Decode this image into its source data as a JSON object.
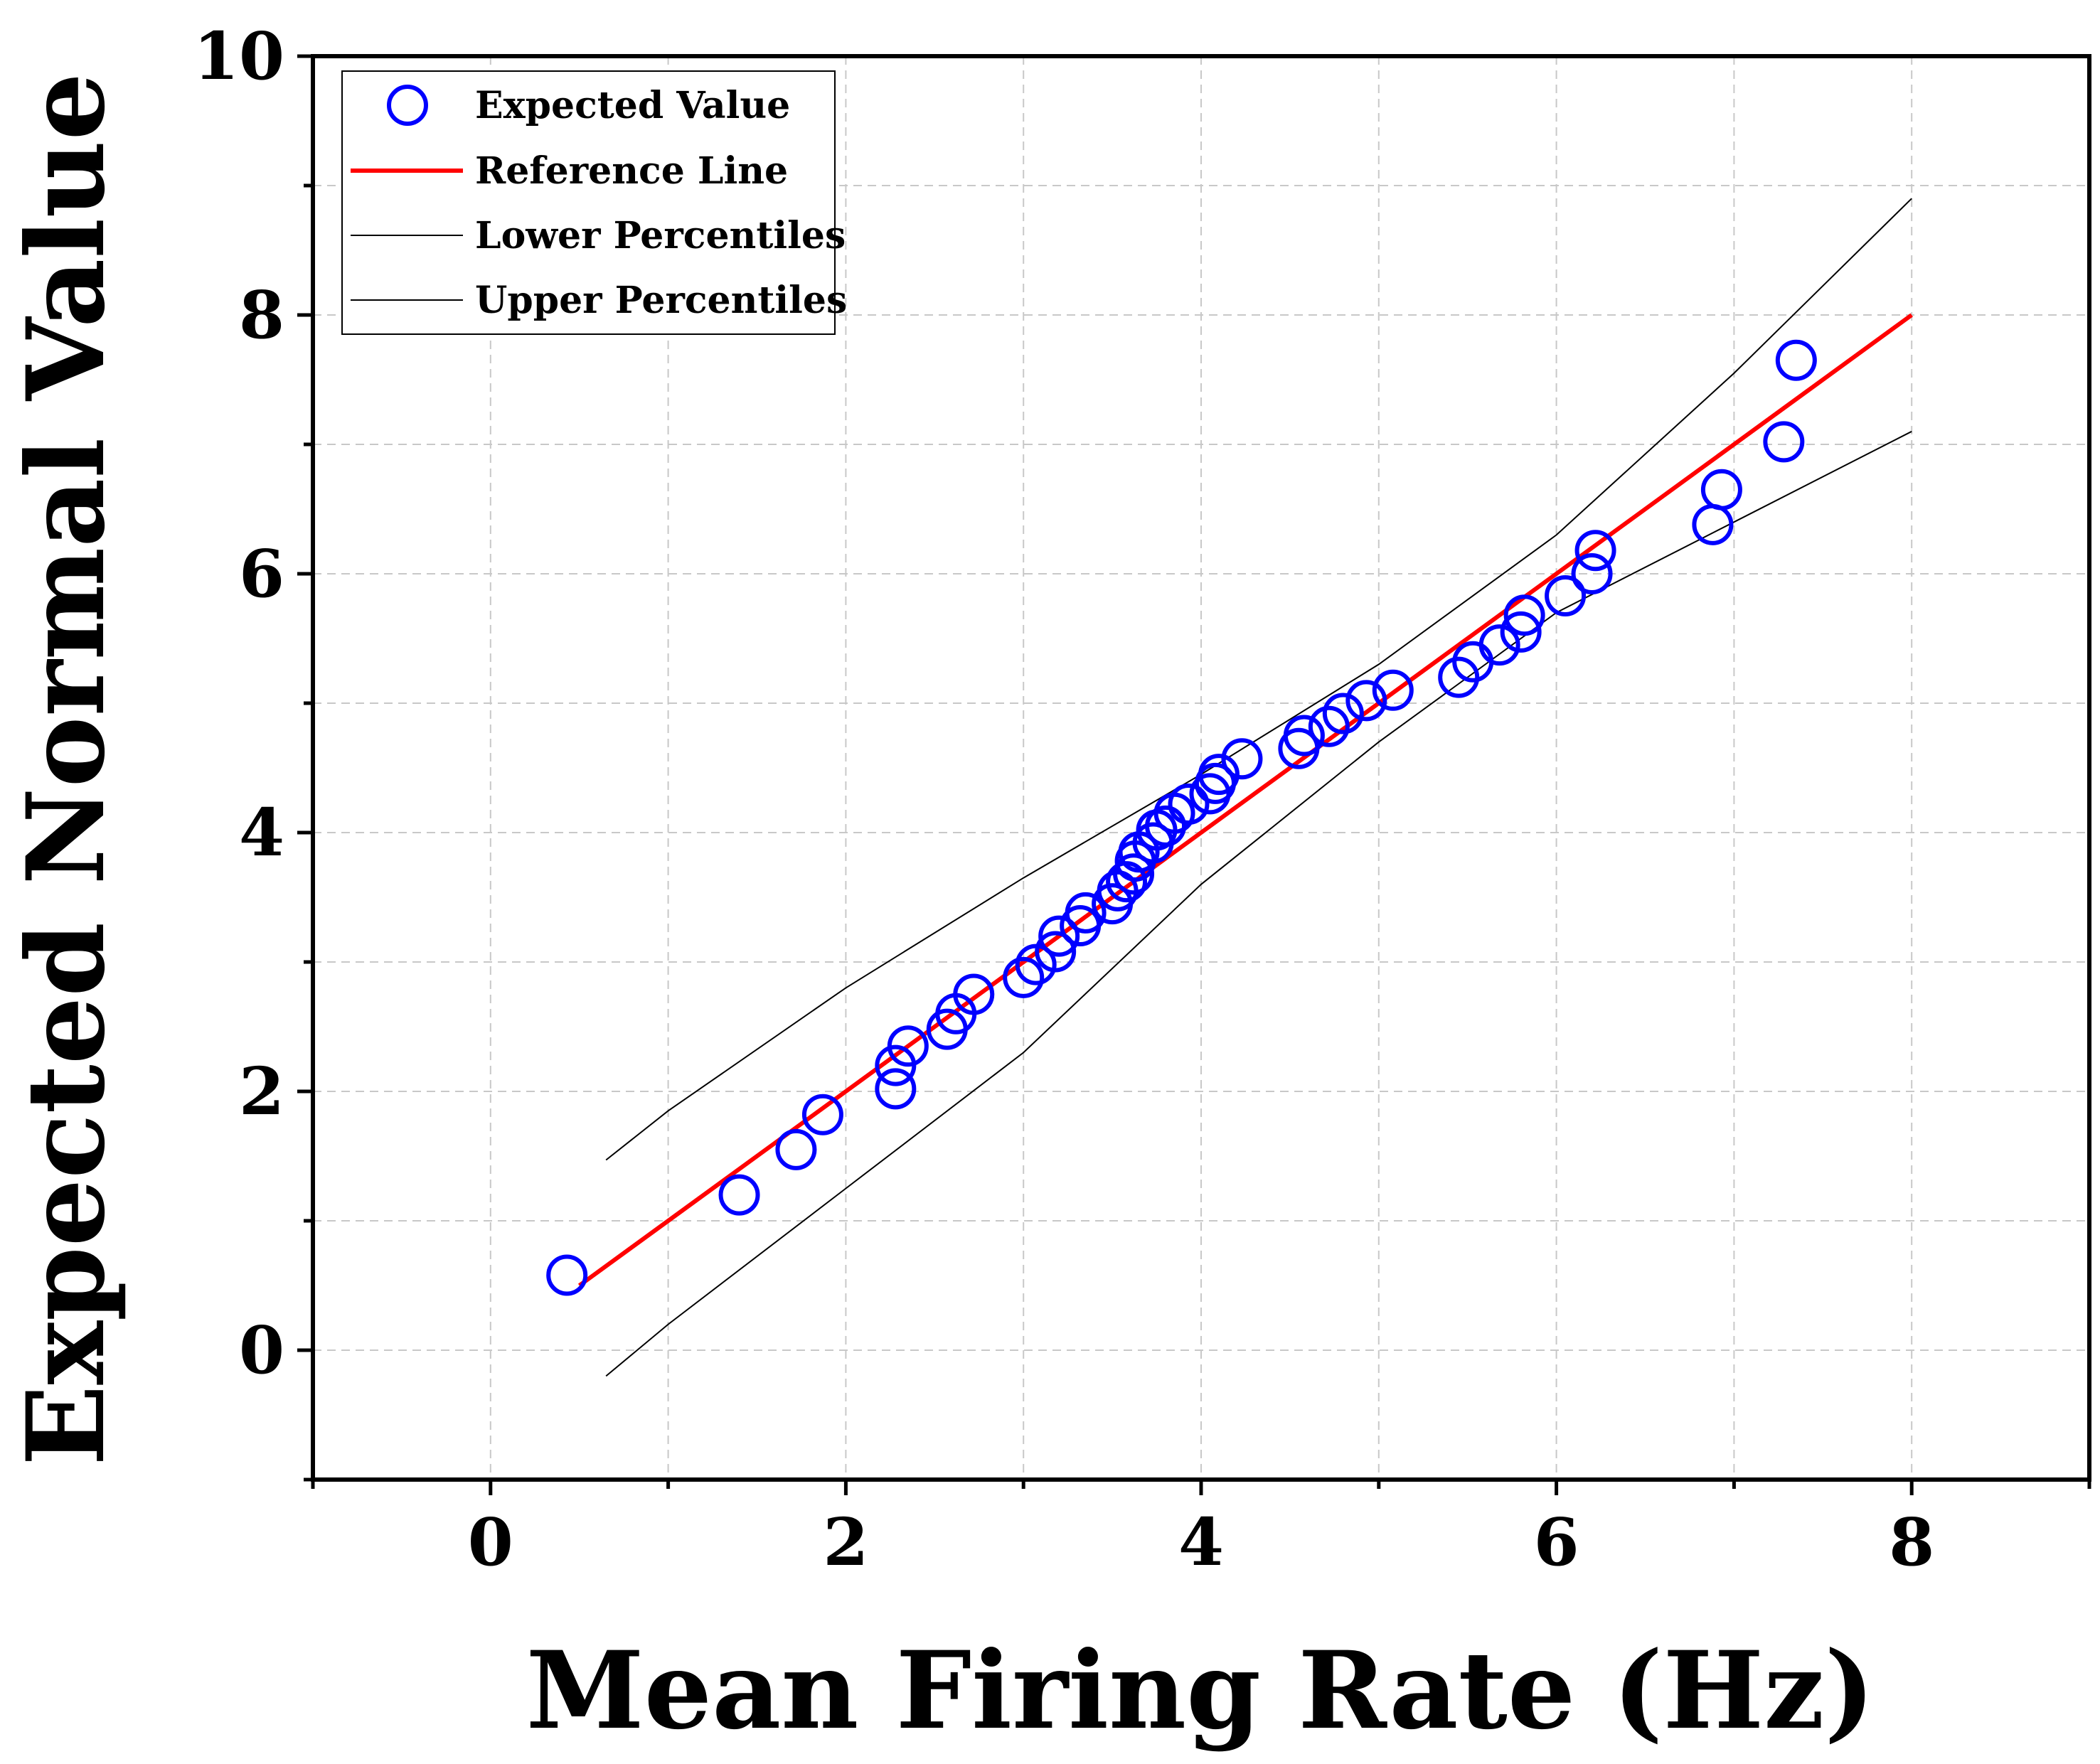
{
  "chart_data": {
    "type": "scatter",
    "title": "",
    "xlabel": "Mean Firing Rate (Hz)",
    "ylabel": "Expected Normal Value",
    "xlim": [
      -1,
      9
    ],
    "ylim": [
      -1,
      10
    ],
    "xticks": [
      0,
      2,
      4,
      6,
      8
    ],
    "xtick_labels": [
      "0",
      "2",
      "4",
      "6",
      "8"
    ],
    "yticks": [
      0,
      2,
      4,
      6,
      8,
      10
    ],
    "ytick_labels": [
      "0",
      "2",
      "4",
      "6",
      "8",
      "10"
    ],
    "grid": true,
    "legend_position": "top-left",
    "legend": [
      {
        "label": "Expected Value",
        "marker": "circle-open",
        "color": "#0000ff"
      },
      {
        "label": "Reference Line",
        "marker": "line",
        "color": "#ff0000"
      },
      {
        "label": "Lower Percentiles",
        "marker": "line",
        "color": "#000000"
      },
      {
        "label": "Upper Percentiles",
        "marker": "line",
        "color": "#000000"
      }
    ],
    "series": [
      {
        "name": "Expected Value",
        "type": "scatter",
        "color": "#0000ff",
        "points": [
          [
            0.43,
            0.58
          ],
          [
            1.4,
            1.2
          ],
          [
            1.72,
            1.55
          ],
          [
            1.87,
            1.82
          ],
          [
            2.28,
            2.02
          ],
          [
            2.28,
            2.2
          ],
          [
            2.35,
            2.35
          ],
          [
            2.57,
            2.48
          ],
          [
            2.62,
            2.6
          ],
          [
            2.72,
            2.75
          ],
          [
            3.0,
            2.88
          ],
          [
            3.07,
            2.98
          ],
          [
            3.18,
            3.08
          ],
          [
            3.2,
            3.2
          ],
          [
            3.32,
            3.28
          ],
          [
            3.35,
            3.38
          ],
          [
            3.5,
            3.45
          ],
          [
            3.53,
            3.55
          ],
          [
            3.58,
            3.62
          ],
          [
            3.62,
            3.68
          ],
          [
            3.63,
            3.78
          ],
          [
            3.65,
            3.85
          ],
          [
            3.73,
            3.92
          ],
          [
            3.75,
            4.02
          ],
          [
            3.8,
            4.05
          ],
          [
            3.85,
            4.15
          ],
          [
            3.93,
            4.22
          ],
          [
            4.05,
            4.3
          ],
          [
            4.08,
            4.38
          ],
          [
            4.1,
            4.45
          ],
          [
            4.23,
            4.57
          ],
          [
            4.55,
            4.65
          ],
          [
            4.58,
            4.75
          ],
          [
            4.72,
            4.82
          ],
          [
            4.8,
            4.92
          ],
          [
            4.93,
            5.02
          ],
          [
            5.08,
            5.1
          ],
          [
            5.45,
            5.2
          ],
          [
            5.53,
            5.32
          ],
          [
            5.68,
            5.45
          ],
          [
            5.8,
            5.55
          ],
          [
            5.82,
            5.68
          ],
          [
            6.05,
            5.83
          ],
          [
            6.2,
            6.0
          ],
          [
            6.22,
            6.18
          ],
          [
            6.88,
            6.38
          ],
          [
            6.93,
            6.65
          ],
          [
            7.28,
            7.02
          ],
          [
            7.35,
            7.65
          ]
        ]
      },
      {
        "name": "Reference Line",
        "type": "line",
        "color": "#ff0000",
        "points": [
          [
            0.5,
            0.5
          ],
          [
            8.0,
            8.0
          ]
        ]
      },
      {
        "name": "Lower Percentiles",
        "type": "line",
        "color": "#000000",
        "points": [
          [
            0.65,
            1.47
          ],
          [
            1.0,
            1.85
          ],
          [
            2.0,
            2.8
          ],
          [
            3.0,
            3.65
          ],
          [
            4.0,
            4.45
          ],
          [
            5.0,
            5.3
          ],
          [
            6.0,
            6.3
          ],
          [
            7.0,
            7.55
          ],
          [
            8.0,
            8.9
          ]
        ]
      },
      {
        "name": "Upper Percentiles",
        "type": "line",
        "color": "#000000",
        "points": [
          [
            0.65,
            -0.2
          ],
          [
            1.0,
            0.2
          ],
          [
            2.0,
            1.25
          ],
          [
            3.0,
            2.3
          ],
          [
            4.0,
            3.6
          ],
          [
            5.0,
            4.7
          ],
          [
            6.0,
            5.7
          ],
          [
            7.0,
            6.4
          ],
          [
            8.0,
            7.1
          ]
        ]
      }
    ]
  }
}
